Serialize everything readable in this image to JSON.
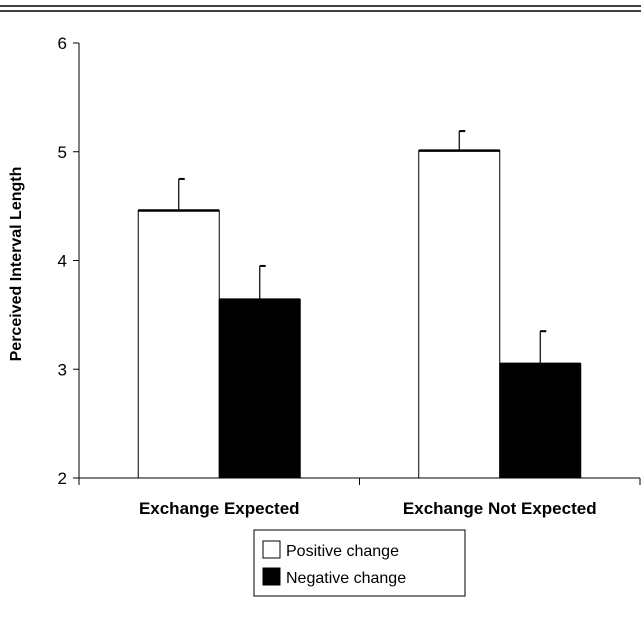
{
  "chart_data": {
    "type": "bar",
    "title": "",
    "xlabel": "",
    "ylabel": "Perceived Interval Length",
    "ylim": [
      2,
      6
    ],
    "yticks": [
      2,
      3,
      4,
      5,
      6
    ],
    "categories": [
      "Exchange Expected",
      "Exchange Not Expected"
    ],
    "series": [
      {
        "name": "Positive change",
        "color": "#ffffff",
        "values": [
          4.46,
          5.01
        ],
        "error_upper": [
          0.29,
          0.18
        ]
      },
      {
        "name": "Negative change",
        "color": "#000000",
        "values": [
          3.64,
          3.05
        ],
        "error_upper": [
          0.31,
          0.3
        ]
      }
    ],
    "grid": false,
    "legend": "bottom-center"
  }
}
